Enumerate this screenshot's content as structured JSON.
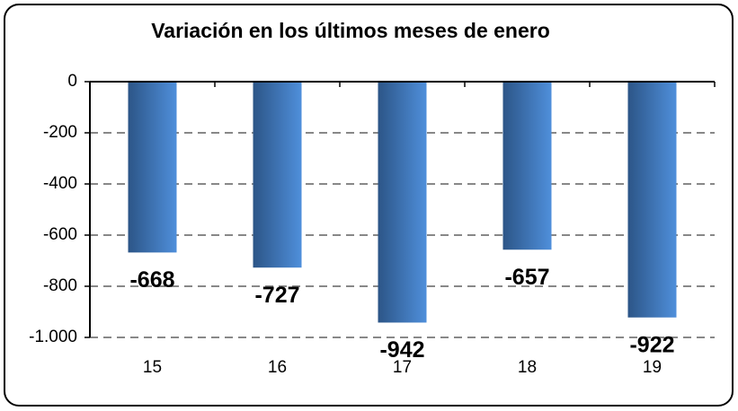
{
  "chart_data": {
    "type": "bar",
    "title": "Variación en los últimos meses de enero",
    "categories": [
      "15",
      "16",
      "17",
      "18",
      "19"
    ],
    "values": [
      -668,
      -727,
      -942,
      -657,
      -922
    ],
    "color": [
      "#2c5587",
      "#4f8fdb"
    ],
    "ylim": [
      -1000,
      0
    ],
    "yticks": [
      0,
      -200,
      -400,
      -600,
      -800,
      {
        "value": -1000,
        "label": "-1.000"
      }
    ],
    "grid": true
  }
}
